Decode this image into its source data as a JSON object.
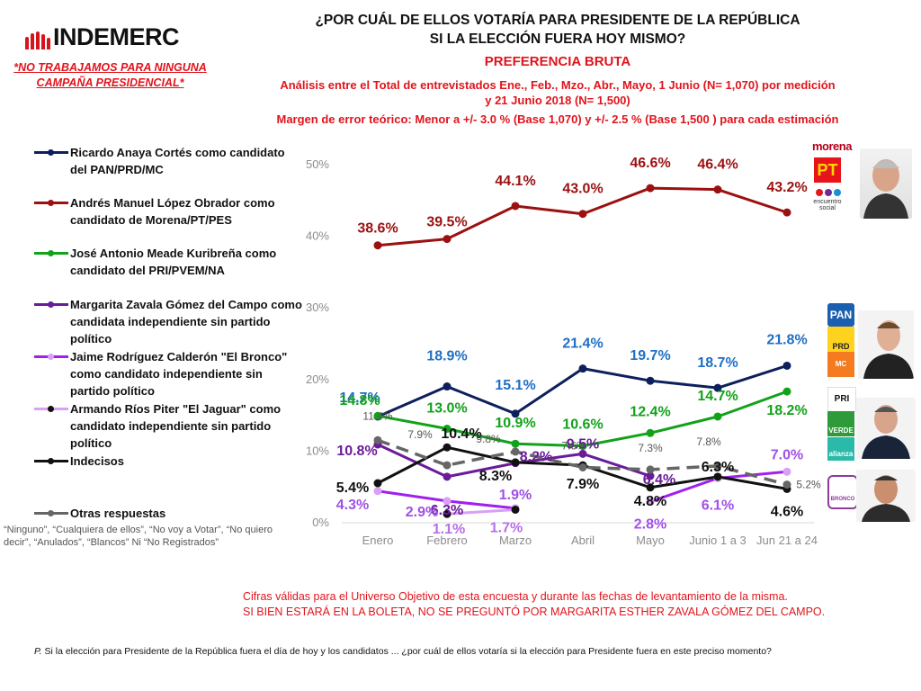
{
  "header": {
    "logo_text": "INDEMERC",
    "disclaimer": "*NO TRABAJAMOS PARA NINGUNA CAMPAÑA PRESIDENCIAL*",
    "title_line1": "¿POR CUÁL DE ELLOS VOTARÍA PARA PRESIDENTE DE LA REPÚBLICA",
    "title_line2": "SI LA ELECCIÓN FUERA HOY MISMO?",
    "subtitle": "PREFERENCIA BRUTA",
    "analysis_line1": "Análisis entre el Total de entrevistados Ene., Feb., Mzo., Abr., Mayo, 1 Junio (N= 1,070) por medición",
    "analysis_line2": "y 21 Junio  2018 (N= 1,500)",
    "margin_line": "Margen de error teórico: Menor a +/- 3.0 % (Base 1,070) y +/-  2.5 % (Base 1,500 ) para cada estimación"
  },
  "legend": {
    "items": [
      {
        "label": "Ricardo Anaya Cortés como candidato del PAN/PRD/MC",
        "color": "#0d1f5c",
        "dot": "#0d1f5c"
      },
      {
        "label": "Andrés Manuel López Obrador como candidato de Morena/PT/PES",
        "color": "#9b1111",
        "dot": "#9b1111"
      },
      {
        "label": "José Antonio Meade Kuribreña como candidato del PRI/PVEM/NA",
        "color": "#12a21a",
        "dot": "#12a21a"
      },
      {
        "label": "Margarita Zavala Gómez del Campo como candidata independiente sin partido político",
        "color": "#6a1b9a",
        "dot": "#6a1b9a"
      },
      {
        "label": "Jaime Rodríguez Calderón \"El Bronco\" como candidato independiente sin partido político",
        "color": "#a020f0",
        "dot": "#d9a0f5"
      },
      {
        "label": "Armando Ríos Piter \"El Jaguar\" como candidato independiente sin partido político",
        "color": "#d9a0f5",
        "dot": "#111111"
      },
      {
        "label": "Indecisos",
        "color": "#111111",
        "dot": "#111111"
      },
      {
        "label": "Otras respuestas",
        "color": "#666666",
        "dot": "#666666"
      }
    ],
    "otras_note": "“Ninguno”, “Cualquiera de ellos”, “No voy a Votar”, “No quiero decir”, “Anulados”, “Blancos” Ni “No Registrados”"
  },
  "party_logos": {
    "morena_group": [
      "morena",
      "PT",
      "encuentro social"
    ],
    "pan_group": [
      "PAN",
      "PRD",
      "MC"
    ],
    "pri_group": [
      "PRI",
      "VERDE",
      "alianza"
    ],
    "bronco_group": [
      "BRONCO"
    ]
  },
  "footnotes": {
    "line1": "Cifras válidas para el Universo Objetivo de esta encuesta y durante las fechas de levantamiento de la misma.",
    "line2": "SI BIEN ESTARÁ EN LA BOLETA, NO SE PREGUNTÓ POR MARGARITA ESTHER ZAVALA GÓMEZ DEL CAMPO.",
    "question_prefix": "P.",
    "question": " Si la elección para Presidente de la República fuera el día de hoy y los candidatos ... ¿por cuál de ellos votaría si la elección para Presidente fuera en este preciso momento?"
  },
  "chart_data": {
    "type": "line",
    "title": "¿POR CUÁL DE ELLOS VOTARÍA PARA PRESIDENTE DE LA REPÚBLICA SI LA ELECCIÓN FUERA HOY MISMO?",
    "xlabel": "",
    "ylabel": "",
    "categories": [
      "Enero",
      "Febrero",
      "Marzo",
      "Abril",
      "Mayo",
      "Junio 1 a 3",
      "Jun 21 a 24"
    ],
    "yticks": [
      "0%",
      "10%",
      "20%",
      "30%",
      "40%",
      "50%"
    ],
    "ylim": [
      0,
      50
    ],
    "grid": false,
    "legend_position": "left",
    "series": [
      {
        "name": "Ricardo Anaya Cortés",
        "color": "#0d1f5c",
        "label_color": "#1f6fc6",
        "values": [
          14.7,
          18.9,
          15.1,
          21.4,
          19.7,
          18.7,
          21.8
        ]
      },
      {
        "name": "Andrés Manuel López Obrador",
        "color": "#9b1111",
        "label_color": "#9b1111",
        "values": [
          38.6,
          39.5,
          44.1,
          43.0,
          46.6,
          46.4,
          43.2
        ]
      },
      {
        "name": "José Antonio Meade Kuribreña",
        "color": "#12a21a",
        "label_color": "#12a21a",
        "values": [
          14.8,
          13.0,
          10.9,
          10.6,
          12.4,
          14.7,
          18.2
        ]
      },
      {
        "name": "Margarita Zavala Gómez del Campo",
        "color": "#6a1b9a",
        "label_color": "#6a1b9a",
        "values": [
          10.8,
          6.3,
          8.2,
          9.5,
          6.4,
          null,
          null
        ]
      },
      {
        "name": "Jaime Rodríguez Calderón \"El Bronco\"",
        "color": "#a020f0",
        "label_color": "#a050e8",
        "values": [
          4.3,
          2.9,
          1.9,
          null,
          2.8,
          6.1,
          7.0
        ]
      },
      {
        "name": "Armando Ríos Piter \"El Jaguar\"",
        "color": "#d9a0f5",
        "label_color": "#b86ee8",
        "values": [
          null,
          1.1,
          1.7,
          null,
          null,
          null,
          null
        ]
      },
      {
        "name": "Indecisos",
        "color": "#111111",
        "label_color": "#111111",
        "values": [
          5.4,
          10.4,
          8.3,
          7.9,
          4.8,
          6.3,
          4.6
        ]
      },
      {
        "name": "Otras respuestas",
        "color": "#666666",
        "label_color": "#555555",
        "dashed": true,
        "values": [
          11.4,
          7.9,
          9.8,
          7.6,
          7.3,
          7.8,
          5.2
        ]
      }
    ]
  }
}
